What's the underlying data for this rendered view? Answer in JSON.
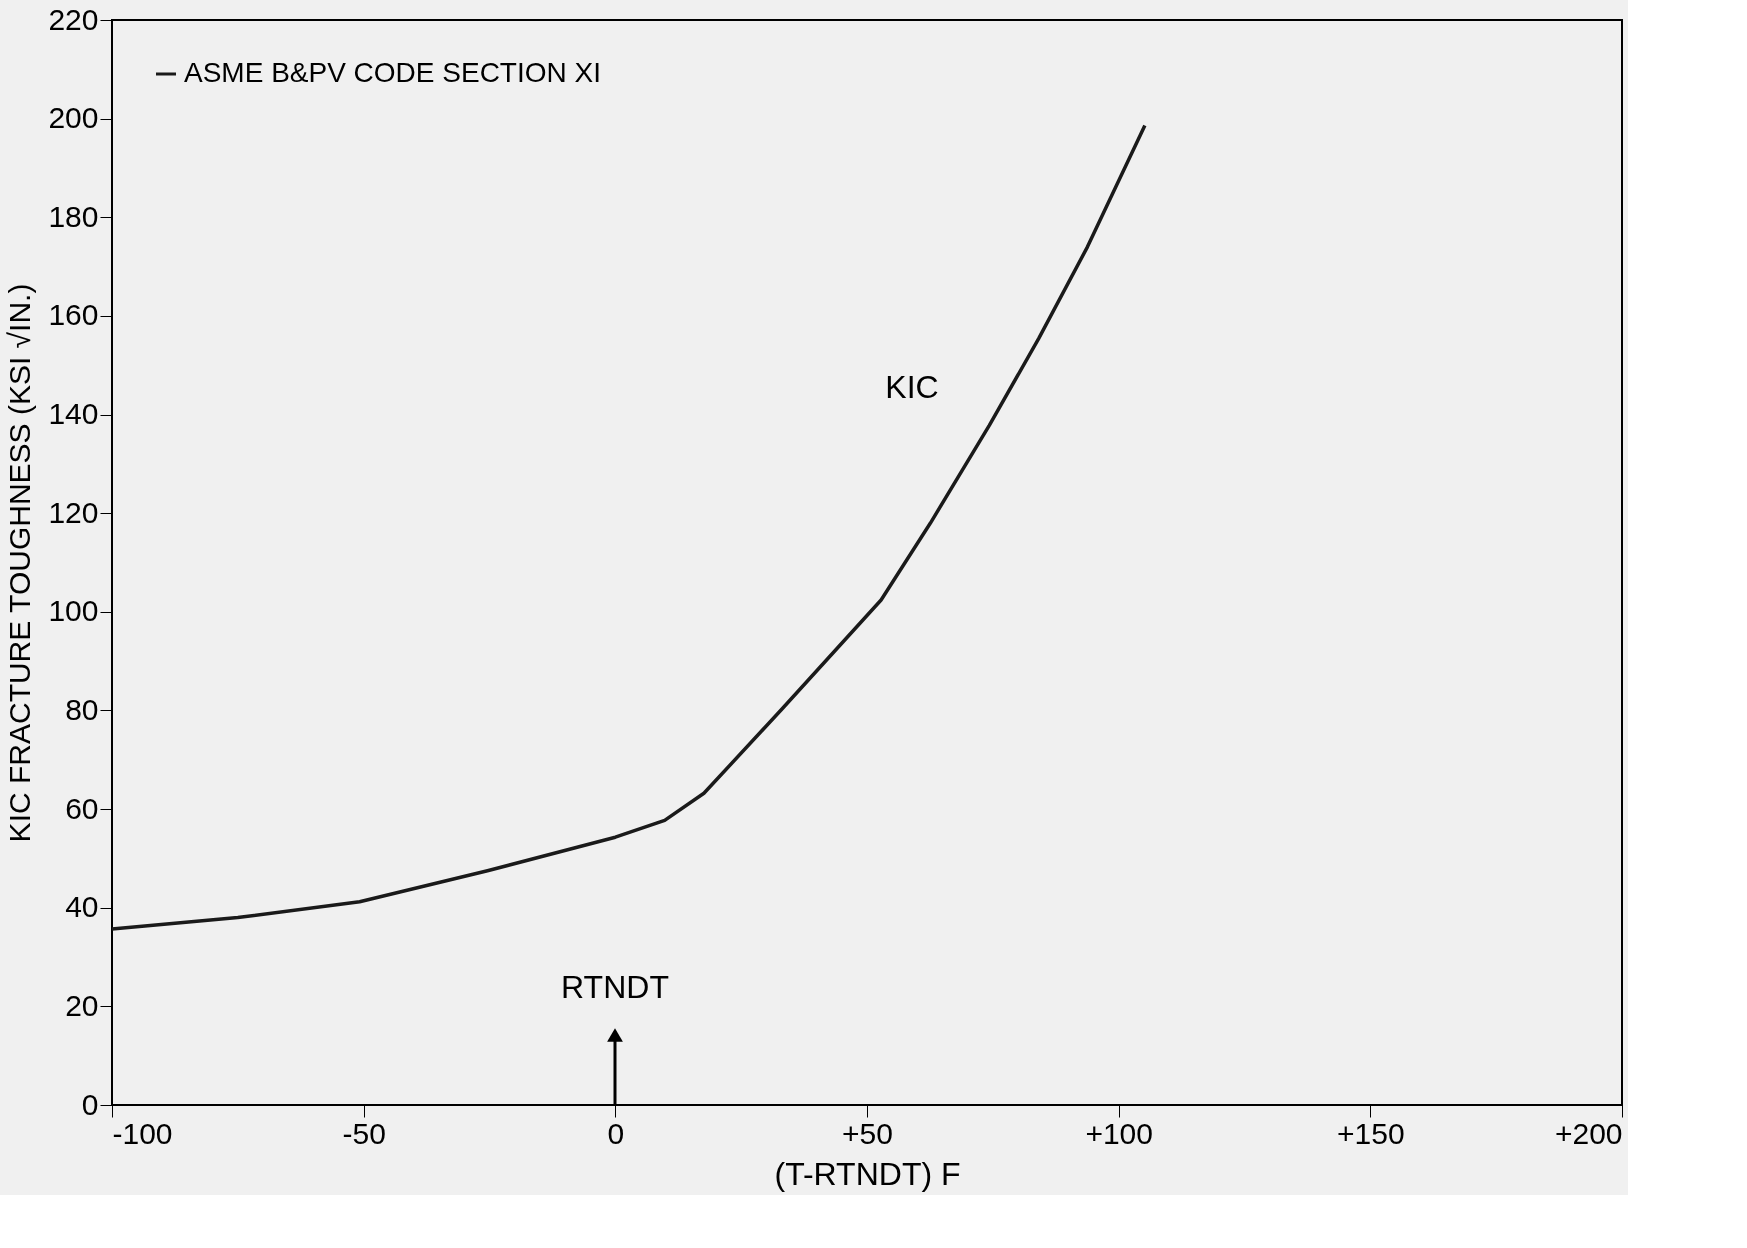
{
  "chart_data": {
    "type": "line",
    "xlabel": "(T-RTNDT) F",
    "ylabel": "KIC FRACTURE TOUGHNESS (KSI √IN.)",
    "series": [
      {
        "name": "ASME B&PV CODE SECTION XI",
        "color": "#1a1a1a",
        "x": [
          -100,
          -75,
          -50.8,
          -25.4,
          0,
          9.8,
          17.6,
          33.2,
          52.8,
          62.6,
          74.3,
          84.1,
          93.8,
          105.2
        ],
        "values": [
          35.7,
          38,
          41.2,
          47.5,
          54.3,
          57.7,
          63.2,
          80.4,
          102.4,
          118,
          137.8,
          155.4,
          174,
          198.6
        ]
      }
    ],
    "xlim": [
      -100,
      200
    ],
    "xticks": [
      -100,
      -50,
      0,
      {
        "value": 50,
        "label": "+50"
      },
      {
        "value": 100,
        "label": "+100"
      },
      {
        "value": 150,
        "label": "+150"
      },
      {
        "value": 200,
        "label": "+200"
      }
    ],
    "ylim": [
      0,
      220
    ],
    "yticks": [
      0,
      20,
      40,
      60,
      80,
      100,
      120,
      140,
      160,
      180,
      200,
      220
    ],
    "annotations": [
      "KIC",
      "RTNDT"
    ],
    "grid": false,
    "legend": "top left",
    "marker": "none",
    "line_style": "solid"
  }
}
